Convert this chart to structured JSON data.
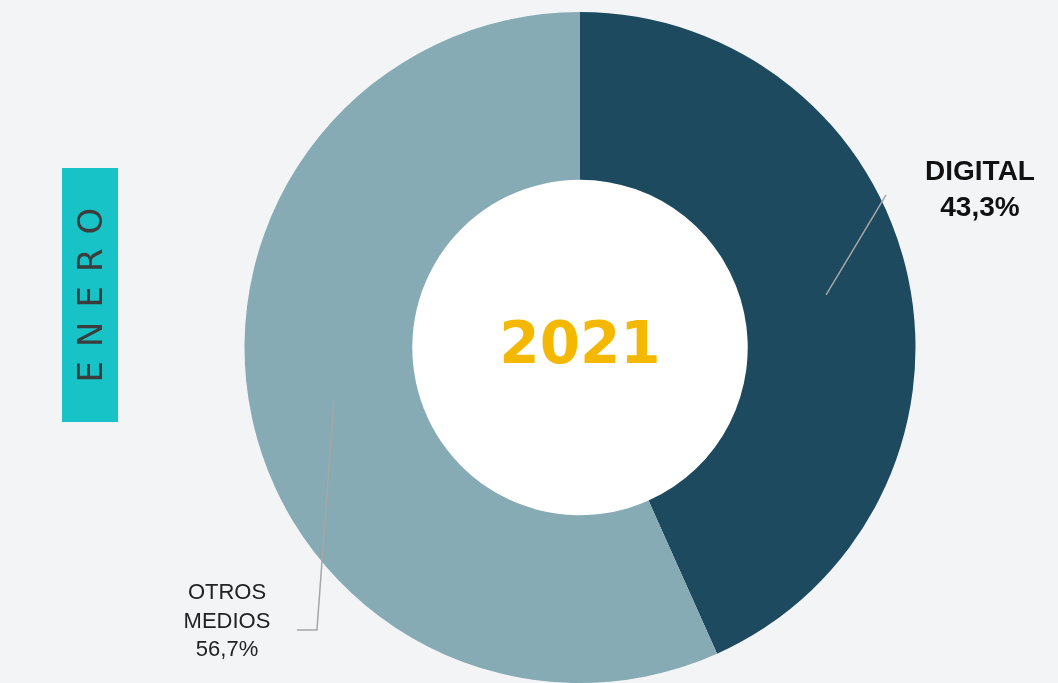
{
  "chart_data": {
    "type": "donut",
    "title": "ENERO",
    "subtitle": "2021",
    "categories": [
      "DIGITAL",
      "OTROS MEDIOS"
    ],
    "values": [
      43.3,
      56.7
    ],
    "value_labels": [
      "43,3%",
      "56,7%"
    ],
    "colors": [
      "#1d4a5e",
      "#86abb5"
    ]
  }
}
